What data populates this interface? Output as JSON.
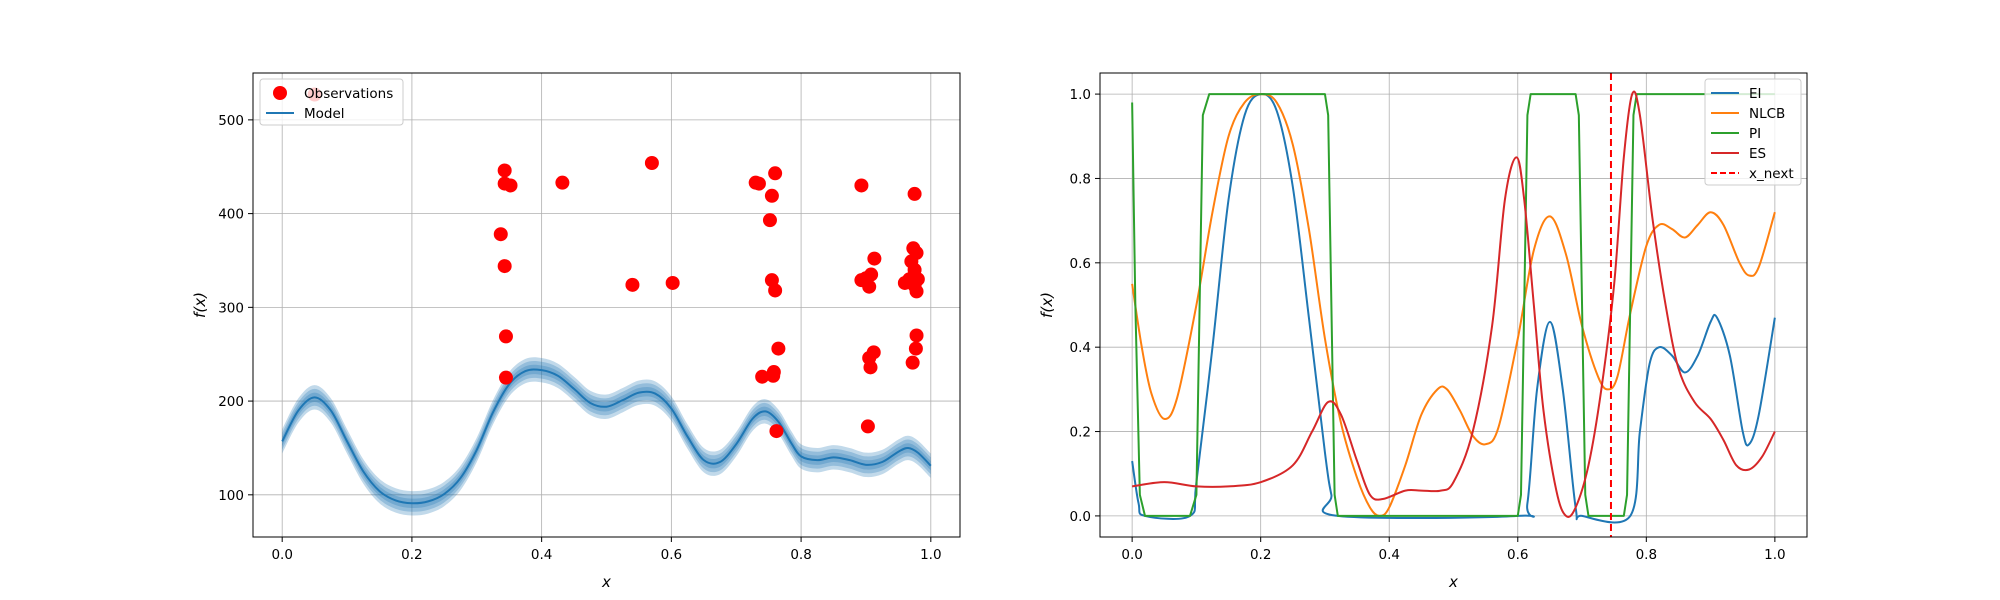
{
  "chart_data": [
    {
      "type": "scatter",
      "subplot": "left",
      "xlabel": "x",
      "ylabel": "f(x)",
      "xlim": [
        -0.045,
        1.045
      ],
      "ylim": [
        55,
        550
      ],
      "xticks": [
        0.0,
        0.2,
        0.4,
        0.6,
        0.8,
        1.0
      ],
      "xtick_labels": [
        "0.0",
        "0.2",
        "0.4",
        "0.6",
        "0.8",
        "1.0"
      ],
      "yticks": [
        100,
        200,
        300,
        400,
        500
      ],
      "ytick_labels": [
        "100",
        "200",
        "300",
        "400",
        "500"
      ],
      "grid": true,
      "legend_position": "top-left",
      "legend": [
        {
          "label": "Observations",
          "marker": "circle",
          "color": "#ff0000"
        },
        {
          "label": "Model",
          "marker": "line",
          "color": "#1f77b4"
        }
      ],
      "observations": {
        "name": "Observations",
        "color": "#ff0000",
        "points": [
          [
            0.05,
            527
          ],
          [
            0.337,
            378
          ],
          [
            0.343,
            446
          ],
          [
            0.343,
            432
          ],
          [
            0.343,
            344
          ],
          [
            0.345,
            269
          ],
          [
            0.345,
            225
          ],
          [
            0.352,
            430
          ],
          [
            0.432,
            433
          ],
          [
            0.54,
            324
          ],
          [
            0.57,
            454
          ],
          [
            0.602,
            326
          ],
          [
            0.73,
            433
          ],
          [
            0.735,
            432
          ],
          [
            0.74,
            226
          ],
          [
            0.752,
            393
          ],
          [
            0.755,
            419
          ],
          [
            0.755,
            329
          ],
          [
            0.757,
            227
          ],
          [
            0.758,
            231
          ],
          [
            0.76,
            443
          ],
          [
            0.76,
            318
          ],
          [
            0.762,
            168
          ],
          [
            0.765,
            256
          ],
          [
            0.893,
            430
          ],
          [
            0.893,
            329
          ],
          [
            0.9,
            331
          ],
          [
            0.903,
            173
          ],
          [
            0.905,
            322
          ],
          [
            0.905,
            246
          ],
          [
            0.907,
            236
          ],
          [
            0.908,
            335
          ],
          [
            0.912,
            252
          ],
          [
            0.913,
            352
          ],
          [
            0.96,
            326
          ],
          [
            0.967,
            330
          ],
          [
            0.97,
            349
          ],
          [
            0.972,
            241
          ],
          [
            0.973,
            363
          ],
          [
            0.975,
            421
          ],
          [
            0.975,
            340
          ],
          [
            0.975,
            323
          ],
          [
            0.977,
            328
          ],
          [
            0.977,
            256
          ],
          [
            0.978,
            358
          ],
          [
            0.978,
            317
          ],
          [
            0.978,
            270
          ],
          [
            0.98,
            330
          ]
        ]
      },
      "model": {
        "name": "Model",
        "color": "#1f77b4",
        "band_halfwidths": [
          5,
          9,
          13
        ],
        "points": [
          [
            0.0,
            157
          ],
          [
            0.025,
            190
          ],
          [
            0.05,
            204
          ],
          [
            0.075,
            190
          ],
          [
            0.1,
            157
          ],
          [
            0.125,
            125
          ],
          [
            0.15,
            104
          ],
          [
            0.175,
            94
          ],
          [
            0.2,
            91
          ],
          [
            0.225,
            93
          ],
          [
            0.25,
            101
          ],
          [
            0.275,
            118
          ],
          [
            0.3,
            148
          ],
          [
            0.325,
            188
          ],
          [
            0.35,
            218
          ],
          [
            0.375,
            232
          ],
          [
            0.4,
            233
          ],
          [
            0.425,
            227
          ],
          [
            0.45,
            213
          ],
          [
            0.475,
            198
          ],
          [
            0.5,
            194
          ],
          [
            0.525,
            201
          ],
          [
            0.55,
            209
          ],
          [
            0.575,
            208
          ],
          [
            0.6,
            192
          ],
          [
            0.625,
            162
          ],
          [
            0.65,
            137
          ],
          [
            0.675,
            135
          ],
          [
            0.7,
            154
          ],
          [
            0.725,
            181
          ],
          [
            0.745,
            189
          ],
          [
            0.765,
            178
          ],
          [
            0.785,
            155
          ],
          [
            0.8,
            141
          ],
          [
            0.825,
            137
          ],
          [
            0.85,
            140
          ],
          [
            0.875,
            137
          ],
          [
            0.9,
            132
          ],
          [
            0.925,
            135
          ],
          [
            0.95,
            146
          ],
          [
            0.965,
            150
          ],
          [
            0.98,
            145
          ],
          [
            1.0,
            131
          ]
        ]
      }
    },
    {
      "type": "line",
      "subplot": "right",
      "xlabel": "x",
      "ylabel": "f(x)",
      "xlim": [
        -0.05,
        1.05
      ],
      "ylim": [
        -0.05,
        1.05
      ],
      "xticks": [
        0.0,
        0.2,
        0.4,
        0.6,
        0.8,
        1.0
      ],
      "xtick_labels": [
        "0.0",
        "0.2",
        "0.4",
        "0.6",
        "0.8",
        "1.0"
      ],
      "yticks": [
        0.0,
        0.2,
        0.4,
        0.6,
        0.8,
        1.0
      ],
      "ytick_labels": [
        "0.0",
        "0.2",
        "0.4",
        "0.6",
        "0.8",
        "1.0"
      ],
      "grid": true,
      "legend_position": "top-right",
      "legend": [
        {
          "label": "EI",
          "color": "#1f77b4",
          "style": "solid"
        },
        {
          "label": "NLCB",
          "color": "#ff7f0e",
          "style": "solid"
        },
        {
          "label": "PI",
          "color": "#2ca02c",
          "style": "solid"
        },
        {
          "label": "ES",
          "color": "#d62728",
          "style": "solid"
        },
        {
          "label": "x_next",
          "color": "#ff0000",
          "style": "dashed"
        }
      ],
      "series": [
        {
          "name": "EI",
          "color": "#1f77b4",
          "points": [
            [
              0.0,
              0.13
            ],
            [
              0.01,
              0.03
            ],
            [
              0.02,
              0.0
            ],
            [
              0.09,
              0.0
            ],
            [
              0.1,
              0.08
            ],
            [
              0.125,
              0.4
            ],
            [
              0.15,
              0.75
            ],
            [
              0.175,
              0.95
            ],
            [
              0.2,
              1.0
            ],
            [
              0.225,
              0.96
            ],
            [
              0.25,
              0.78
            ],
            [
              0.275,
              0.47
            ],
            [
              0.3,
              0.15
            ],
            [
              0.31,
              0.05
            ],
            [
              0.32,
              0.0
            ],
            [
              0.6,
              0.0
            ],
            [
              0.615,
              0.03
            ],
            [
              0.63,
              0.3
            ],
            [
              0.65,
              0.46
            ],
            [
              0.67,
              0.3
            ],
            [
              0.69,
              0.02
            ],
            [
              0.7,
              0.0
            ],
            [
              0.775,
              0.0
            ],
            [
              0.79,
              0.2
            ],
            [
              0.805,
              0.36
            ],
            [
              0.82,
              0.4
            ],
            [
              0.84,
              0.38
            ],
            [
              0.86,
              0.34
            ],
            [
              0.88,
              0.38
            ],
            [
              0.9,
              0.46
            ],
            [
              0.91,
              0.47
            ],
            [
              0.93,
              0.38
            ],
            [
              0.95,
              0.2
            ],
            [
              0.96,
              0.17
            ],
            [
              0.975,
              0.24
            ],
            [
              1.0,
              0.47
            ]
          ]
        },
        {
          "name": "NLCB",
          "color": "#ff7f0e",
          "points": [
            [
              0.0,
              0.55
            ],
            [
              0.015,
              0.4
            ],
            [
              0.03,
              0.29
            ],
            [
              0.05,
              0.23
            ],
            [
              0.07,
              0.28
            ],
            [
              0.1,
              0.5
            ],
            [
              0.125,
              0.72
            ],
            [
              0.15,
              0.9
            ],
            [
              0.175,
              0.98
            ],
            [
              0.2,
              1.0
            ],
            [
              0.225,
              0.98
            ],
            [
              0.25,
              0.88
            ],
            [
              0.275,
              0.68
            ],
            [
              0.3,
              0.42
            ],
            [
              0.325,
              0.22
            ],
            [
              0.35,
              0.09
            ],
            [
              0.37,
              0.02
            ],
            [
              0.385,
              0.0
            ],
            [
              0.4,
              0.02
            ],
            [
              0.425,
              0.12
            ],
            [
              0.45,
              0.24
            ],
            [
              0.475,
              0.3
            ],
            [
              0.49,
              0.3
            ],
            [
              0.51,
              0.25
            ],
            [
              0.53,
              0.19
            ],
            [
              0.55,
              0.17
            ],
            [
              0.57,
              0.21
            ],
            [
              0.6,
              0.42
            ],
            [
              0.625,
              0.63
            ],
            [
              0.65,
              0.71
            ],
            [
              0.675,
              0.62
            ],
            [
              0.7,
              0.45
            ],
            [
              0.725,
              0.33
            ],
            [
              0.74,
              0.3
            ],
            [
              0.755,
              0.33
            ],
            [
              0.775,
              0.48
            ],
            [
              0.8,
              0.64
            ],
            [
              0.82,
              0.69
            ],
            [
              0.84,
              0.68
            ],
            [
              0.86,
              0.66
            ],
            [
              0.88,
              0.69
            ],
            [
              0.9,
              0.72
            ],
            [
              0.92,
              0.69
            ],
            [
              0.945,
              0.6
            ],
            [
              0.96,
              0.57
            ],
            [
              0.975,
              0.59
            ],
            [
              1.0,
              0.72
            ]
          ]
        },
        {
          "name": "PI",
          "color": "#2ca02c",
          "points": [
            [
              0.0,
              0.98
            ],
            [
              0.005,
              0.5
            ],
            [
              0.012,
              0.05
            ],
            [
              0.02,
              0.0
            ],
            [
              0.09,
              0.0
            ],
            [
              0.1,
              0.05
            ],
            [
              0.105,
              0.5
            ],
            [
              0.11,
              0.95
            ],
            [
              0.12,
              1.0
            ],
            [
              0.3,
              1.0
            ],
            [
              0.305,
              0.95
            ],
            [
              0.31,
              0.5
            ],
            [
              0.315,
              0.05
            ],
            [
              0.32,
              0.0
            ],
            [
              0.6,
              0.0
            ],
            [
              0.605,
              0.05
            ],
            [
              0.61,
              0.5
            ],
            [
              0.615,
              0.95
            ],
            [
              0.62,
              1.0
            ],
            [
              0.69,
              1.0
            ],
            [
              0.695,
              0.95
            ],
            [
              0.7,
              0.5
            ],
            [
              0.705,
              0.05
            ],
            [
              0.71,
              0.0
            ],
            [
              0.765,
              0.0
            ],
            [
              0.77,
              0.05
            ],
            [
              0.775,
              0.5
            ],
            [
              0.78,
              0.95
            ],
            [
              0.785,
              1.0
            ],
            [
              1.0,
              1.0
            ]
          ]
        },
        {
          "name": "ES",
          "color": "#d62728",
          "points": [
            [
              0.0,
              0.07
            ],
            [
              0.05,
              0.08
            ],
            [
              0.1,
              0.07
            ],
            [
              0.15,
              0.07
            ],
            [
              0.2,
              0.08
            ],
            [
              0.25,
              0.12
            ],
            [
              0.28,
              0.2
            ],
            [
              0.305,
              0.27
            ],
            [
              0.325,
              0.24
            ],
            [
              0.35,
              0.13
            ],
            [
              0.37,
              0.05
            ],
            [
              0.39,
              0.04
            ],
            [
              0.425,
              0.06
            ],
            [
              0.45,
              0.06
            ],
            [
              0.48,
              0.06
            ],
            [
              0.5,
              0.08
            ],
            [
              0.53,
              0.2
            ],
            [
              0.56,
              0.45
            ],
            [
              0.58,
              0.75
            ],
            [
              0.598,
              0.85
            ],
            [
              0.61,
              0.75
            ],
            [
              0.625,
              0.5
            ],
            [
              0.64,
              0.25
            ],
            [
              0.66,
              0.06
            ],
            [
              0.675,
              0.0
            ],
            [
              0.69,
              0.02
            ],
            [
              0.71,
              0.12
            ],
            [
              0.73,
              0.3
            ],
            [
              0.75,
              0.55
            ],
            [
              0.765,
              0.85
            ],
            [
              0.778,
              1.0
            ],
            [
              0.79,
              0.95
            ],
            [
              0.81,
              0.7
            ],
            [
              0.83,
              0.5
            ],
            [
              0.85,
              0.35
            ],
            [
              0.875,
              0.27
            ],
            [
              0.9,
              0.23
            ],
            [
              0.92,
              0.18
            ],
            [
              0.94,
              0.12
            ],
            [
              0.96,
              0.11
            ],
            [
              0.98,
              0.14
            ],
            [
              1.0,
              0.2
            ]
          ]
        }
      ],
      "x_next": {
        "name": "x_next",
        "value": 0.745,
        "color": "#ff0000",
        "style": "dashed"
      }
    }
  ]
}
